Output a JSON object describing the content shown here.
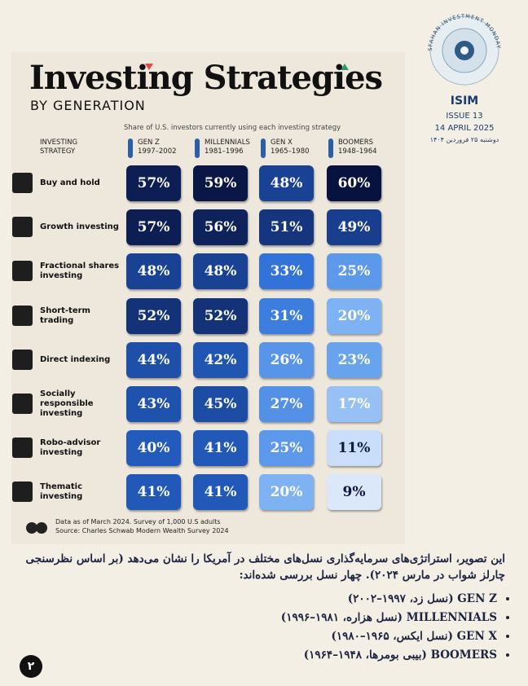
{
  "header": {
    "title": "Investing Strategies",
    "subtitle": "BY GENERATION",
    "note": "Share of U.S. investors currently using each investing strategy",
    "row_header": "INVESTING STRATEGY"
  },
  "masthead": {
    "ring_text": "ISFAHAN INVESTMENT MONDAYS",
    "logo": "ISIM",
    "issue": "ISSUE 13",
    "date": "14 APRIL 2025",
    "date_fa": "دوشنبه ۲۵ فروردین ۱۴۰۴"
  },
  "table": {
    "columns": [
      {
        "name": "GEN Z",
        "years": "1997–2002"
      },
      {
        "name": "MILLENNIALS",
        "years": "1981–1996"
      },
      {
        "name": "GEN X",
        "years": "1965–1980"
      },
      {
        "name": "BOOMERS",
        "years": "1948–1964"
      }
    ],
    "rows": [
      {
        "label": "Buy and hold",
        "cells": [
          {
            "value": 57,
            "label": "57%"
          },
          {
            "value": 59,
            "label": "59%"
          },
          {
            "value": 48,
            "label": "48%"
          },
          {
            "value": 60,
            "label": "60%"
          }
        ]
      },
      {
        "label": "Growth investing",
        "cells": [
          {
            "value": 57,
            "label": "57%"
          },
          {
            "value": 56,
            "label": "56%"
          },
          {
            "value": 51,
            "label": "51%"
          },
          {
            "value": 49,
            "label": "49%"
          }
        ]
      },
      {
        "label": "Fractional shares investing",
        "cells": [
          {
            "value": 48,
            "label": "48%"
          },
          {
            "value": 48,
            "label": "48%"
          },
          {
            "value": 33,
            "label": "33%"
          },
          {
            "value": 25,
            "label": "25%"
          }
        ]
      },
      {
        "label": "Short-term trading",
        "cells": [
          {
            "value": 52,
            "label": "52%"
          },
          {
            "value": 52,
            "label": "52%"
          },
          {
            "value": 31,
            "label": "31%"
          },
          {
            "value": 20,
            "label": "20%"
          }
        ]
      },
      {
        "label": "Direct indexing",
        "cells": [
          {
            "value": 44,
            "label": "44%"
          },
          {
            "value": 42,
            "label": "42%"
          },
          {
            "value": 26,
            "label": "26%"
          },
          {
            "value": 23,
            "label": "23%"
          }
        ]
      },
      {
        "label": "Socially responsible investing",
        "cells": [
          {
            "value": 43,
            "label": "43%"
          },
          {
            "value": 45,
            "label": "45%"
          },
          {
            "value": 27,
            "label": "27%"
          },
          {
            "value": 17,
            "label": "17%"
          }
        ]
      },
      {
        "label": "Robo-advisor investing",
        "cells": [
          {
            "value": 40,
            "label": "40%"
          },
          {
            "value": 41,
            "label": "41%"
          },
          {
            "value": 25,
            "label": "25%"
          },
          {
            "value": 11,
            "label": "11%"
          }
        ]
      },
      {
        "label": "Thematic investing",
        "cells": [
          {
            "value": 41,
            "label": "41%"
          },
          {
            "value": 41,
            "label": "41%"
          },
          {
            "value": 20,
            "label": "20%"
          },
          {
            "value": 9,
            "label": "9%"
          }
        ]
      }
    ]
  },
  "footer": {
    "data_note": "Data as of March 2024. Survey of 1,000 U.S adults",
    "source": "Source: Charles Schwab Modern Wealth Survey 2024"
  },
  "body": {
    "paragraph": "این تصویر، استراتژی‌های سرمایه‌گذاری نسل‌های مختلف در آمریکا را نشان می‌دهد (بر اساس نظرسنجی چارلز شواب در مارس ۲۰۲۴). چهار نسل بررسی شده‌اند:",
    "bullets": [
      "GEN Z (نسل زد، ۱۹۹۷–۲۰۰۲)",
      "MILLENNIALS (نسل هزاره، ۱۹۸۱–۱۹۹۶)",
      "GEN X (نسل ایکس، ۱۹۶۵–۱۹۸۰)",
      "BOOMERS (بیبی بومرها، ۱۹۴۸–۱۹۶۴)"
    ]
  },
  "page_number": "۲"
}
